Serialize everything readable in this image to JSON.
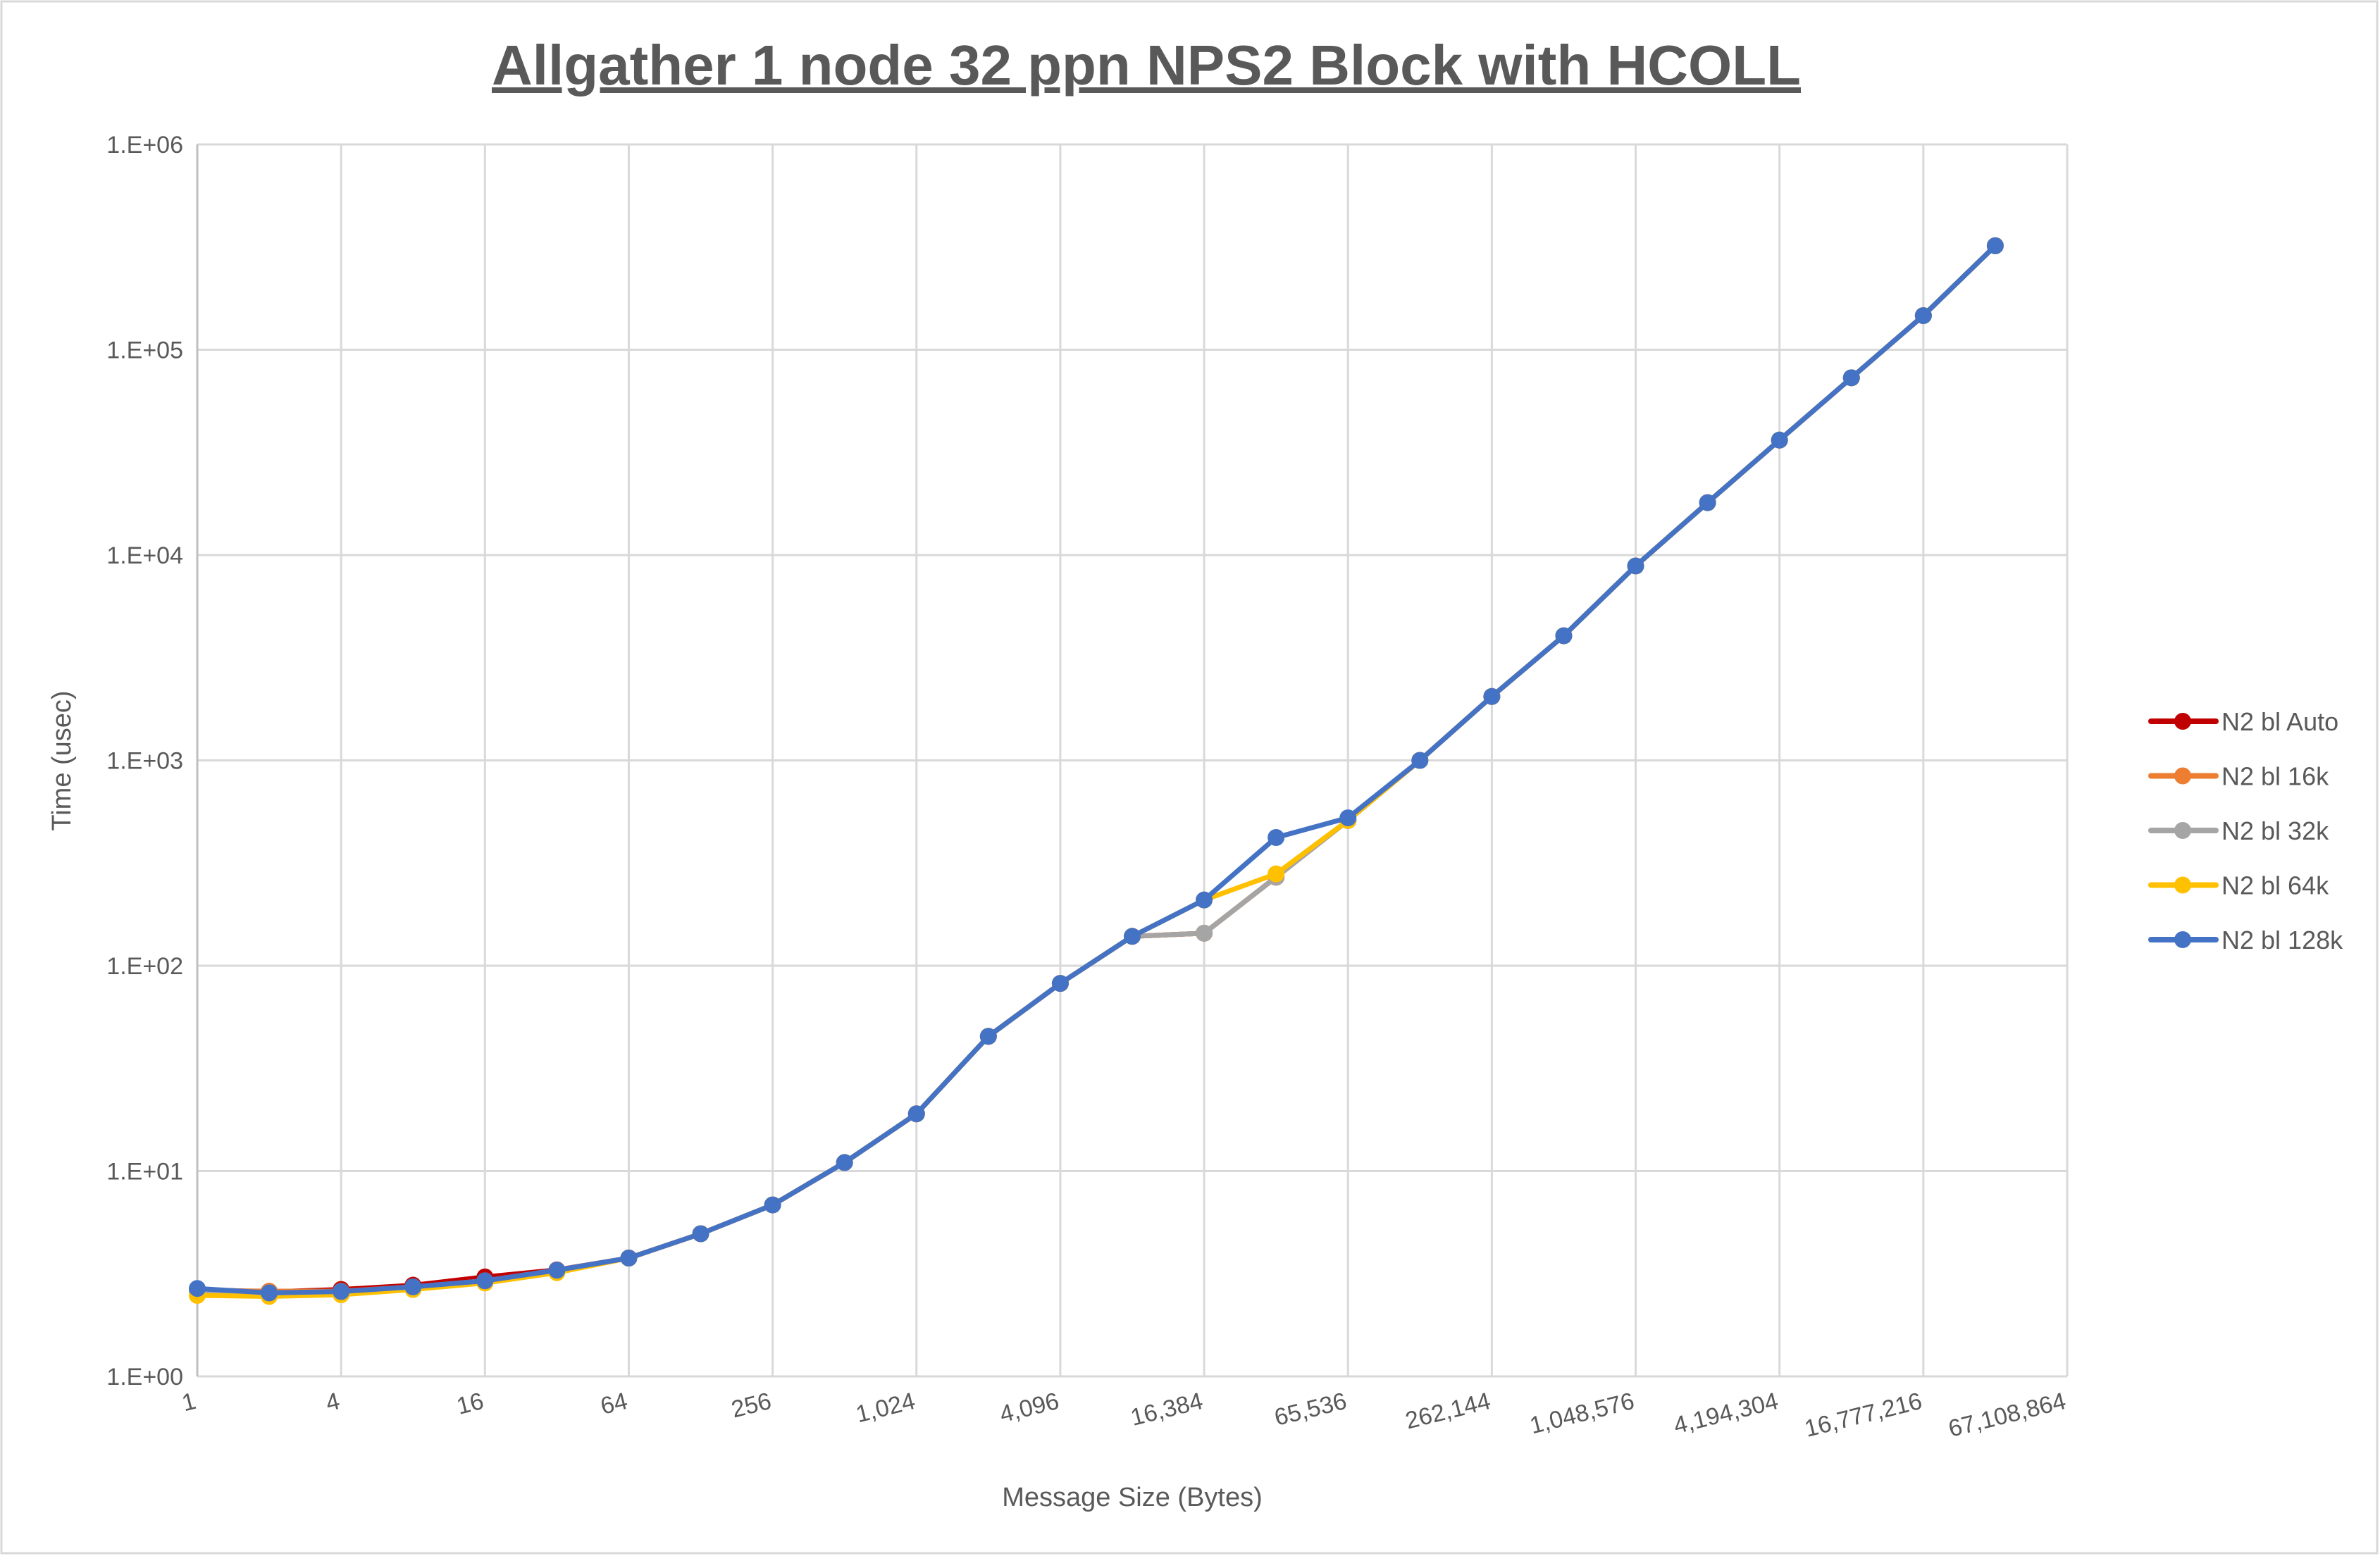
{
  "chart_data": {
    "type": "line",
    "title": "Allgather 1 node 32 ppn NPS2 Block with HCOLL",
    "xlabel": "Message Size (Bytes)",
    "ylabel": "Time (usec)",
    "y_scale": "log",
    "ylim": [
      1,
      1000000
    ],
    "y_tick_labels": [
      "1.E+00",
      "1.E+01",
      "1.E+02",
      "1.E+03",
      "1.E+04",
      "1.E+05",
      "1.E+06"
    ],
    "x_scale": "category (powers of 2)",
    "x": [
      1,
      2,
      4,
      8,
      16,
      32,
      64,
      128,
      256,
      512,
      1024,
      2048,
      4096,
      8192,
      16384,
      32768,
      65536,
      131072,
      262144,
      524288,
      1048576,
      2097152,
      4194304,
      8388608,
      16777216,
      33554432
    ],
    "x_tick_labels": [
      "1",
      "4",
      "16",
      "64",
      "256",
      "1,024",
      "4,096",
      "16,384",
      "65,536",
      "262,144",
      "1,048,576",
      "4,194,304",
      "16,777,216",
      "67,108,864"
    ],
    "grid": true,
    "legend_position": "right",
    "series": [
      {
        "name": "N2 bl Auto",
        "color": "#C00000",
        "values": [
          2.65,
          2.58,
          2.65,
          2.78,
          3.05,
          3.3,
          3.77,
          4.95,
          6.84,
          11.0,
          19.0,
          45.3,
          82,
          139,
          144,
          270,
          510,
          1000,
          2047,
          4045,
          8850,
          18000,
          36300,
          73000,
          146600,
          321000
        ]
      },
      {
        "name": "N2 bl 16k",
        "color": "#ED7D31",
        "values": [
          2.62,
          2.6,
          2.6,
          2.73,
          2.92,
          3.29,
          3.77,
          4.95,
          6.84,
          11.0,
          19.0,
          45.3,
          82,
          139,
          144,
          270,
          510,
          1000,
          2047,
          4045,
          8850,
          18000,
          36300,
          73000,
          146600,
          321000
        ]
      },
      {
        "name": "N2 bl 32k",
        "color": "#A5A5A5",
        "values": [
          2.6,
          2.55,
          2.58,
          2.72,
          2.92,
          3.29,
          3.77,
          4.95,
          6.84,
          11.0,
          19.0,
          45.3,
          82,
          139,
          144,
          270,
          510,
          1000,
          2047,
          4045,
          8850,
          18000,
          36300,
          73000,
          146600,
          321000
        ]
      },
      {
        "name": "N2 bl 64k",
        "color": "#FFC000",
        "values": [
          2.48,
          2.45,
          2.5,
          2.65,
          2.85,
          3.2,
          3.77,
          4.95,
          6.84,
          11.0,
          19.0,
          45.3,
          82,
          139,
          209,
          280,
          510,
          1000,
          2047,
          4045,
          8850,
          18000,
          36300,
          73000,
          146600,
          321000
        ]
      },
      {
        "name": "N2 bl 128k",
        "color": "#4472C4",
        "values": [
          2.68,
          2.55,
          2.59,
          2.73,
          2.92,
          3.29,
          3.77,
          4.95,
          6.84,
          11.0,
          19.0,
          45.3,
          82,
          139,
          209,
          421,
          525,
          1000,
          2047,
          4045,
          8850,
          18000,
          36300,
          73000,
          146600,
          321000
        ]
      }
    ]
  }
}
